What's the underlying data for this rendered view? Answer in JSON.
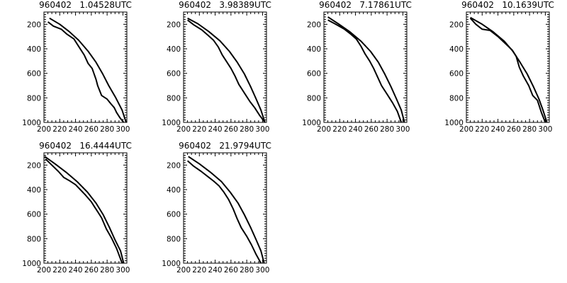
{
  "chart_data": [
    {
      "type": "line",
      "title": "960402   1.04528UTC",
      "xlim": [
        200,
        305
      ],
      "ylim": [
        1000,
        100
      ],
      "xticks": [
        "200",
        "220",
        "240",
        "260",
        "280",
        "300"
      ],
      "yticks": [
        "200",
        "400",
        "600",
        "800",
        "1000"
      ],
      "series": [
        {
          "x": [
            207,
            220,
            232,
            244,
            256,
            266,
            274,
            282,
            291,
            299,
            304
          ],
          "y": [
            150,
            200,
            260,
            330,
            420,
            510,
            600,
            700,
            800,
            900,
            1000
          ]
        },
        {
          "x": [
            205,
            212,
            222,
            229,
            238,
            245,
            251,
            256,
            261,
            266,
            268,
            273,
            280,
            285,
            289,
            292,
            296,
            301
          ],
          "y": [
            180,
            215,
            240,
            280,
            320,
            390,
            450,
            520,
            560,
            650,
            700,
            780,
            810,
            850,
            880,
            920,
            960,
            1000
          ]
        }
      ]
    },
    {
      "type": "line",
      "title": "960402   3.98389UTC",
      "xlim": [
        200,
        305
      ],
      "ylim": [
        1000,
        100
      ],
      "xticks": [
        "200",
        "220",
        "240",
        "260",
        "280",
        "300"
      ],
      "yticks": [
        "200",
        "400",
        "600",
        "800",
        "1000"
      ],
      "series": [
        {
          "x": [
            205,
            218,
            232,
            246,
            258,
            268,
            277,
            285,
            292,
            298,
            303
          ],
          "y": [
            150,
            195,
            260,
            335,
            420,
            510,
            605,
            710,
            810,
            900,
            1000
          ]
        },
        {
          "x": [
            205,
            213,
            223,
            231,
            238,
            244,
            249,
            254,
            260,
            265,
            270,
            277,
            284,
            290,
            296,
            303
          ],
          "y": [
            165,
            205,
            245,
            290,
            330,
            385,
            450,
            500,
            560,
            620,
            690,
            760,
            830,
            880,
            940,
            1000
          ]
        }
      ]
    },
    {
      "type": "line",
      "title": "960402   7.17861UTC",
      "xlim": [
        200,
        305
      ],
      "ylim": [
        1000,
        100
      ],
      "xticks": [
        "200",
        "220",
        "240",
        "260",
        "280",
        "300"
      ],
      "yticks": [
        "200",
        "400",
        "600",
        "800",
        "1000"
      ],
      "series": [
        {
          "x": [
            205,
            218,
            233,
            247,
            259,
            269,
            277,
            285,
            292,
            298,
            302
          ],
          "y": [
            140,
            195,
            262,
            338,
            420,
            510,
            605,
            710,
            810,
            900,
            1000
          ]
        },
        {
          "x": [
            205,
            215,
            226,
            234,
            241,
            247,
            252,
            258,
            263,
            268,
            273,
            280,
            287,
            293,
            298
          ],
          "y": [
            165,
            200,
            240,
            280,
            320,
            380,
            440,
            500,
            560,
            630,
            700,
            770,
            840,
            910,
            1000
          ]
        }
      ]
    },
    {
      "type": "line",
      "title": "960402   10.1639UTC",
      "xlim": [
        200,
        305
      ],
      "ylim": [
        1000,
        100
      ],
      "xticks": [
        "200",
        "220",
        "240",
        "260",
        "280",
        "300"
      ],
      "yticks": [
        "200",
        "400",
        "600",
        "800",
        "1000"
      ],
      "series": [
        {
          "x": [
            205,
            220,
            234,
            248,
            259,
            268,
            277,
            285,
            292,
            297,
            302
          ],
          "y": [
            145,
            200,
            262,
            338,
            420,
            510,
            605,
            710,
            810,
            900,
            1000
          ]
        },
        {
          "x": [
            205,
            212,
            220,
            230,
            240,
            250,
            258,
            263,
            267,
            272,
            279,
            284,
            290,
            295,
            300
          ],
          "y": [
            150,
            200,
            240,
            250,
            300,
            360,
            410,
            460,
            550,
            620,
            700,
            780,
            820,
            920,
            1000
          ]
        }
      ]
    },
    {
      "type": "line",
      "title": "960402   16.4444UTC",
      "xlim": [
        200,
        305
      ],
      "ylim": [
        1000,
        100
      ],
      "xticks": [
        "200",
        "220",
        "240",
        "260",
        "280",
        "300"
      ],
      "yticks": [
        "200",
        "400",
        "600",
        "800",
        "1000"
      ],
      "series": [
        {
          "x": [
            201,
            214,
            228,
            242,
            255,
            266,
            275,
            283,
            290,
            297,
            301
          ],
          "y": [
            130,
            190,
            258,
            335,
            420,
            510,
            605,
            710,
            810,
            900,
            1000
          ]
        },
        {
          "x": [
            202,
            210,
            218,
            225,
            233,
            240,
            246,
            252,
            256,
            260,
            264,
            268,
            273,
            279,
            286,
            292,
            299
          ],
          "y": [
            150,
            200,
            250,
            300,
            330,
            360,
            400,
            440,
            470,
            500,
            540,
            580,
            630,
            720,
            800,
            880,
            1000
          ]
        }
      ]
    },
    {
      "type": "line",
      "title": "960402   21.9794UTC",
      "xlim": [
        200,
        305
      ],
      "ylim": [
        1000,
        100
      ],
      "xticks": [
        "200",
        "220",
        "240",
        "260",
        "280",
        "300"
      ],
      "yticks": [
        "200",
        "400",
        "600",
        "800",
        "1000"
      ],
      "series": [
        {
          "x": [
            206,
            220,
            234,
            248,
            259,
            269,
            277,
            285,
            292,
            298,
            302
          ],
          "y": [
            130,
            190,
            258,
            335,
            420,
            510,
            605,
            710,
            810,
            900,
            1000
          ]
        },
        {
          "x": [
            205,
            213,
            222,
            230,
            238,
            245,
            251,
            257,
            263,
            268,
            273,
            280,
            286,
            292,
            298
          ],
          "y": [
            165,
            210,
            250,
            290,
            330,
            370,
            420,
            480,
            560,
            640,
            710,
            780,
            850,
            930,
            1000
          ]
        }
      ]
    }
  ]
}
